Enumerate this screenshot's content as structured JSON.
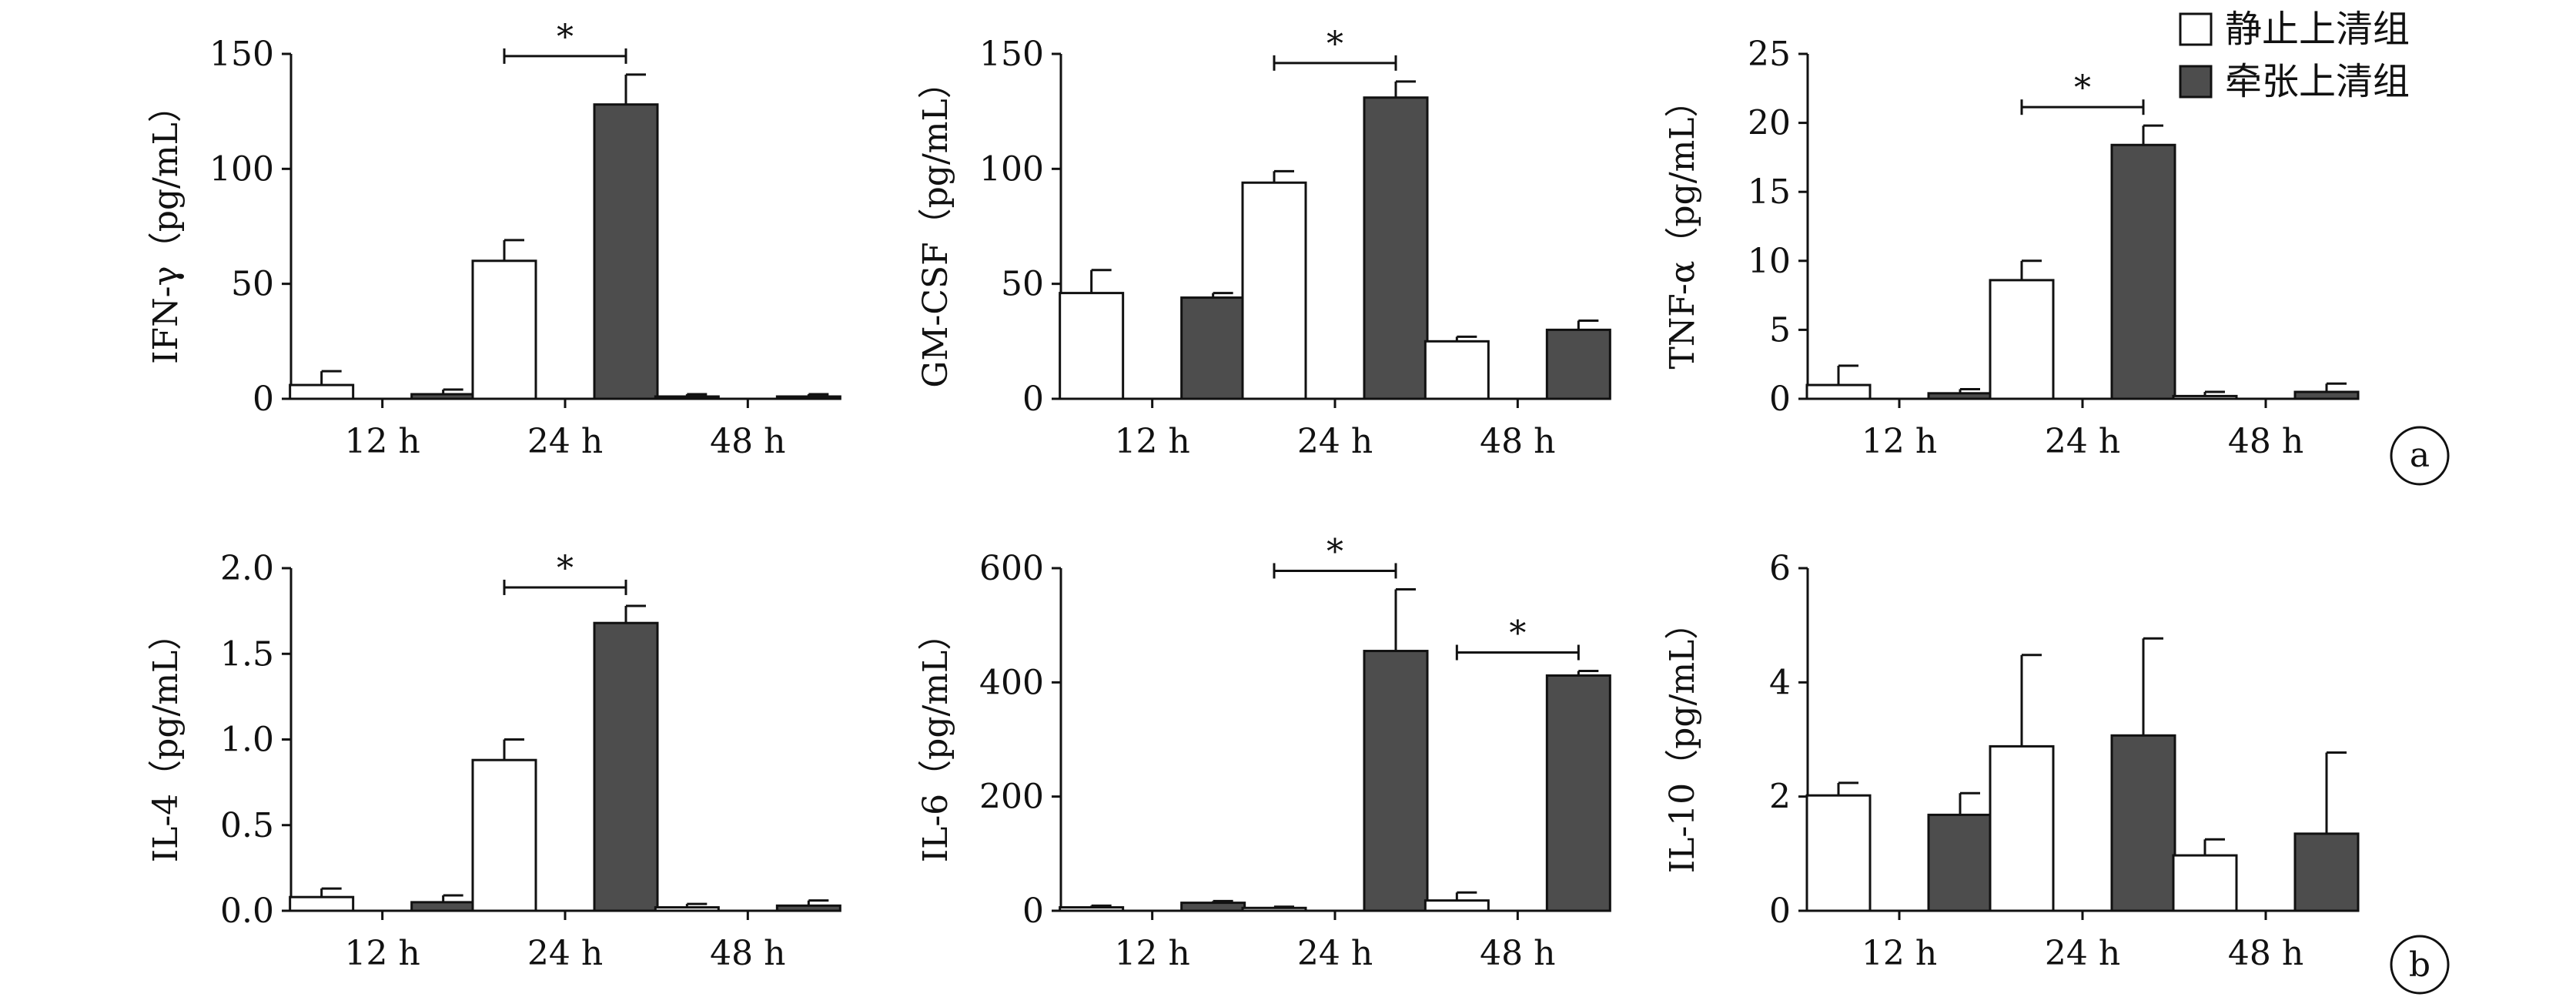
{
  "legend": {
    "items": [
      {
        "label": "静止上清组",
        "color": "#ffffff"
      },
      {
        "label": "牵张上清组",
        "color": "#4d4d4d"
      }
    ]
  },
  "panel_labels": [
    "a",
    "b"
  ],
  "colors": {
    "static": "#ffffff",
    "stretch": "#4d4d4d",
    "axis": "#111111"
  },
  "chart_data": [
    {
      "type": "bar",
      "ylabel": "IFN-γ（pg/mL）",
      "categories": [
        "12 h",
        "24 h",
        "48 h"
      ],
      "ylim": [
        0,
        150
      ],
      "yticks": [
        0,
        50,
        100,
        150
      ],
      "ytick_labels": [
        "0",
        "50",
        "100",
        "150"
      ],
      "series": [
        {
          "name": "静止上清组",
          "values": [
            6,
            60,
            1
          ],
          "errors": [
            6,
            9,
            1
          ]
        },
        {
          "name": "牵张上清组",
          "values": [
            2,
            128,
            1
          ],
          "errors": [
            2,
            13,
            1
          ]
        }
      ],
      "significance": [
        {
          "category": 1,
          "label": "*"
        }
      ]
    },
    {
      "type": "bar",
      "ylabel": "GM-CSF（pg/mL）",
      "categories": [
        "12 h",
        "24 h",
        "48 h"
      ],
      "ylim": [
        0,
        150
      ],
      "yticks": [
        0,
        50,
        100,
        150
      ],
      "ytick_labels": [
        "0",
        "50",
        "100",
        "150"
      ],
      "series": [
        {
          "name": "静止上清组",
          "values": [
            46,
            94,
            25
          ],
          "errors": [
            10,
            5,
            2
          ]
        },
        {
          "name": "牵张上清组",
          "values": [
            44,
            131,
            30
          ],
          "errors": [
            2,
            7,
            4
          ]
        }
      ],
      "significance": [
        {
          "category": 1,
          "label": "*"
        }
      ]
    },
    {
      "type": "bar",
      "ylabel": "TNF-α（pg/mL）",
      "categories": [
        "12 h",
        "24 h",
        "48 h"
      ],
      "ylim": [
        0,
        25
      ],
      "yticks": [
        0,
        5,
        10,
        15,
        20,
        25
      ],
      "ytick_labels": [
        "0",
        "5",
        "10",
        "15",
        "20",
        "25"
      ],
      "series": [
        {
          "name": "静止上清组",
          "values": [
            1,
            8.6,
            0.2
          ],
          "errors": [
            1.4,
            1.4,
            0.3
          ]
        },
        {
          "name": "牵张上清组",
          "values": [
            0.4,
            18.4,
            0.5
          ],
          "errors": [
            0.3,
            1.4,
            0.6
          ]
        }
      ],
      "significance": [
        {
          "category": 1,
          "label": "*"
        }
      ]
    },
    {
      "type": "bar",
      "ylabel": "IL-4（pg/mL）",
      "categories": [
        "12 h",
        "24 h",
        "48 h"
      ],
      "ylim": [
        0,
        2.0
      ],
      "yticks": [
        0,
        0.5,
        1.0,
        1.5,
        2.0
      ],
      "ytick_labels": [
        "0.0",
        "0.5",
        "1.0",
        "1.5",
        "2.0"
      ],
      "series": [
        {
          "name": "静止上清组",
          "values": [
            0.08,
            0.88,
            0.02
          ],
          "errors": [
            0.05,
            0.12,
            0.02
          ]
        },
        {
          "name": "牵张上清组",
          "values": [
            0.05,
            1.68,
            0.03
          ],
          "errors": [
            0.04,
            0.1,
            0.03
          ]
        }
      ],
      "significance": [
        {
          "category": 1,
          "label": "*"
        }
      ]
    },
    {
      "type": "bar",
      "ylabel": "IL-6（pg/mL）",
      "categories": [
        "12 h",
        "24 h",
        "48 h"
      ],
      "ylim": [
        0,
        600
      ],
      "yticks": [
        0,
        200,
        400,
        600
      ],
      "ytick_labels": [
        "0",
        "200",
        "400",
        "600"
      ],
      "series": [
        {
          "name": "静止上清组",
          "values": [
            6,
            5,
            18
          ],
          "errors": [
            3,
            2,
            14
          ]
        },
        {
          "name": "牵张上清组",
          "values": [
            14,
            455,
            412
          ],
          "errors": [
            3,
            108,
            8
          ]
        }
      ],
      "significance": [
        {
          "category": 1,
          "label": "*"
        },
        {
          "category": 2,
          "label": "*"
        }
      ]
    },
    {
      "type": "bar",
      "ylabel": "IL-10（pg/mL）",
      "categories": [
        "12 h",
        "24 h",
        "48 h"
      ],
      "ylim": [
        0,
        6
      ],
      "yticks": [
        0,
        2,
        4,
        6
      ],
      "ytick_labels": [
        "0",
        "2",
        "4",
        "6"
      ],
      "series": [
        {
          "name": "静止上清组",
          "values": [
            2.02,
            2.88,
            0.97
          ],
          "errors": [
            0.22,
            1.6,
            0.28
          ]
        },
        {
          "name": "牵张上清组",
          "values": [
            1.68,
            3.07,
            1.35
          ],
          "errors": [
            0.38,
            1.7,
            1.42
          ]
        }
      ],
      "significance": []
    }
  ]
}
